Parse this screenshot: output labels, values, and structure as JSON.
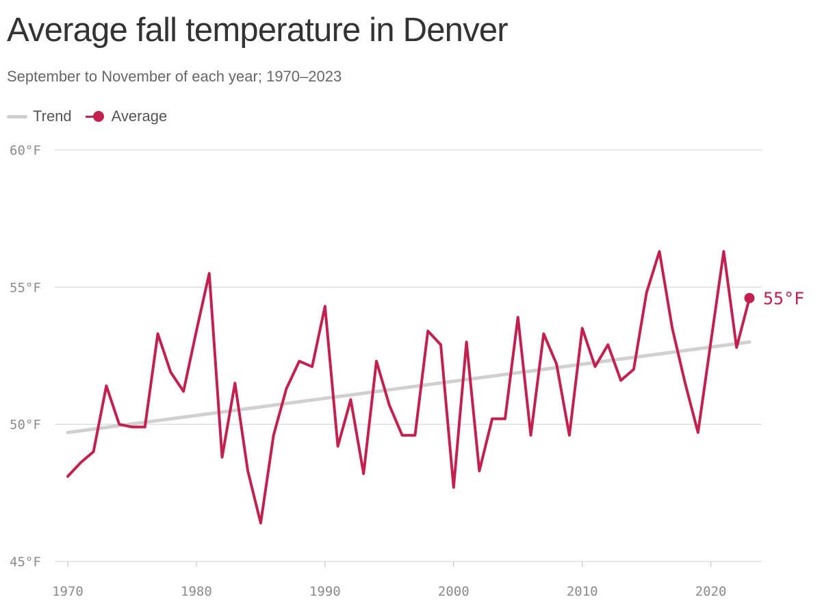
{
  "header": {
    "title": "Average fall temperature in Denver",
    "subtitle": "September to November of each year; 1970–2023"
  },
  "legend": {
    "trend_label": "Trend",
    "average_label": "Average"
  },
  "chart_data": {
    "type": "line",
    "title": "Average fall temperature in Denver",
    "subtitle": "September to November of each year; 1970–2023",
    "xlabel": "",
    "ylabel": "",
    "xlim": [
      1970,
      2023
    ],
    "ylim": [
      45,
      60
    ],
    "x_ticks": [
      1970,
      1980,
      1990,
      2000,
      2010,
      2020
    ],
    "x_tick_labels": [
      "1970",
      "1980",
      "1990",
      "2000",
      "2010",
      "2020"
    ],
    "y_ticks": [
      45,
      50,
      55,
      60
    ],
    "y_tick_labels": [
      "45°F",
      "50°F",
      "55°F",
      "60°F"
    ],
    "grid": "horizontal",
    "legend_position": "top-left",
    "colors": {
      "average": "#c4204f",
      "trend": "#d0d0d0",
      "grid": "#dddddd"
    },
    "end_label": "55°F",
    "series": [
      {
        "name": "Average",
        "x": [
          1970,
          1971,
          1972,
          1973,
          1974,
          1975,
          1976,
          1977,
          1978,
          1979,
          1980,
          1981,
          1982,
          1983,
          1984,
          1985,
          1986,
          1987,
          1988,
          1989,
          1990,
          1991,
          1992,
          1993,
          1994,
          1995,
          1996,
          1997,
          1998,
          1999,
          2000,
          2001,
          2002,
          2003,
          2004,
          2005,
          2006,
          2007,
          2008,
          2009,
          2010,
          2011,
          2012,
          2013,
          2014,
          2015,
          2016,
          2017,
          2018,
          2019,
          2020,
          2021,
          2022,
          2023
        ],
        "values": [
          48.1,
          48.6,
          49.0,
          51.4,
          50.0,
          49.9,
          49.9,
          53.3,
          51.9,
          51.2,
          53.4,
          55.5,
          48.8,
          51.5,
          48.3,
          46.4,
          49.6,
          51.3,
          52.3,
          52.1,
          54.3,
          49.2,
          50.9,
          48.2,
          52.3,
          50.7,
          49.6,
          49.6,
          53.4,
          52.9,
          47.7,
          53.0,
          48.3,
          50.2,
          50.2,
          53.9,
          49.6,
          53.3,
          52.2,
          49.6,
          53.5,
          52.1,
          52.9,
          51.6,
          52.0,
          54.8,
          56.3,
          53.5,
          51.5,
          49.7,
          53.0,
          56.3,
          52.8,
          54.6
        ]
      },
      {
        "name": "Trend",
        "x": [
          1970,
          2023
        ],
        "values": [
          49.7,
          53.0
        ]
      }
    ]
  }
}
